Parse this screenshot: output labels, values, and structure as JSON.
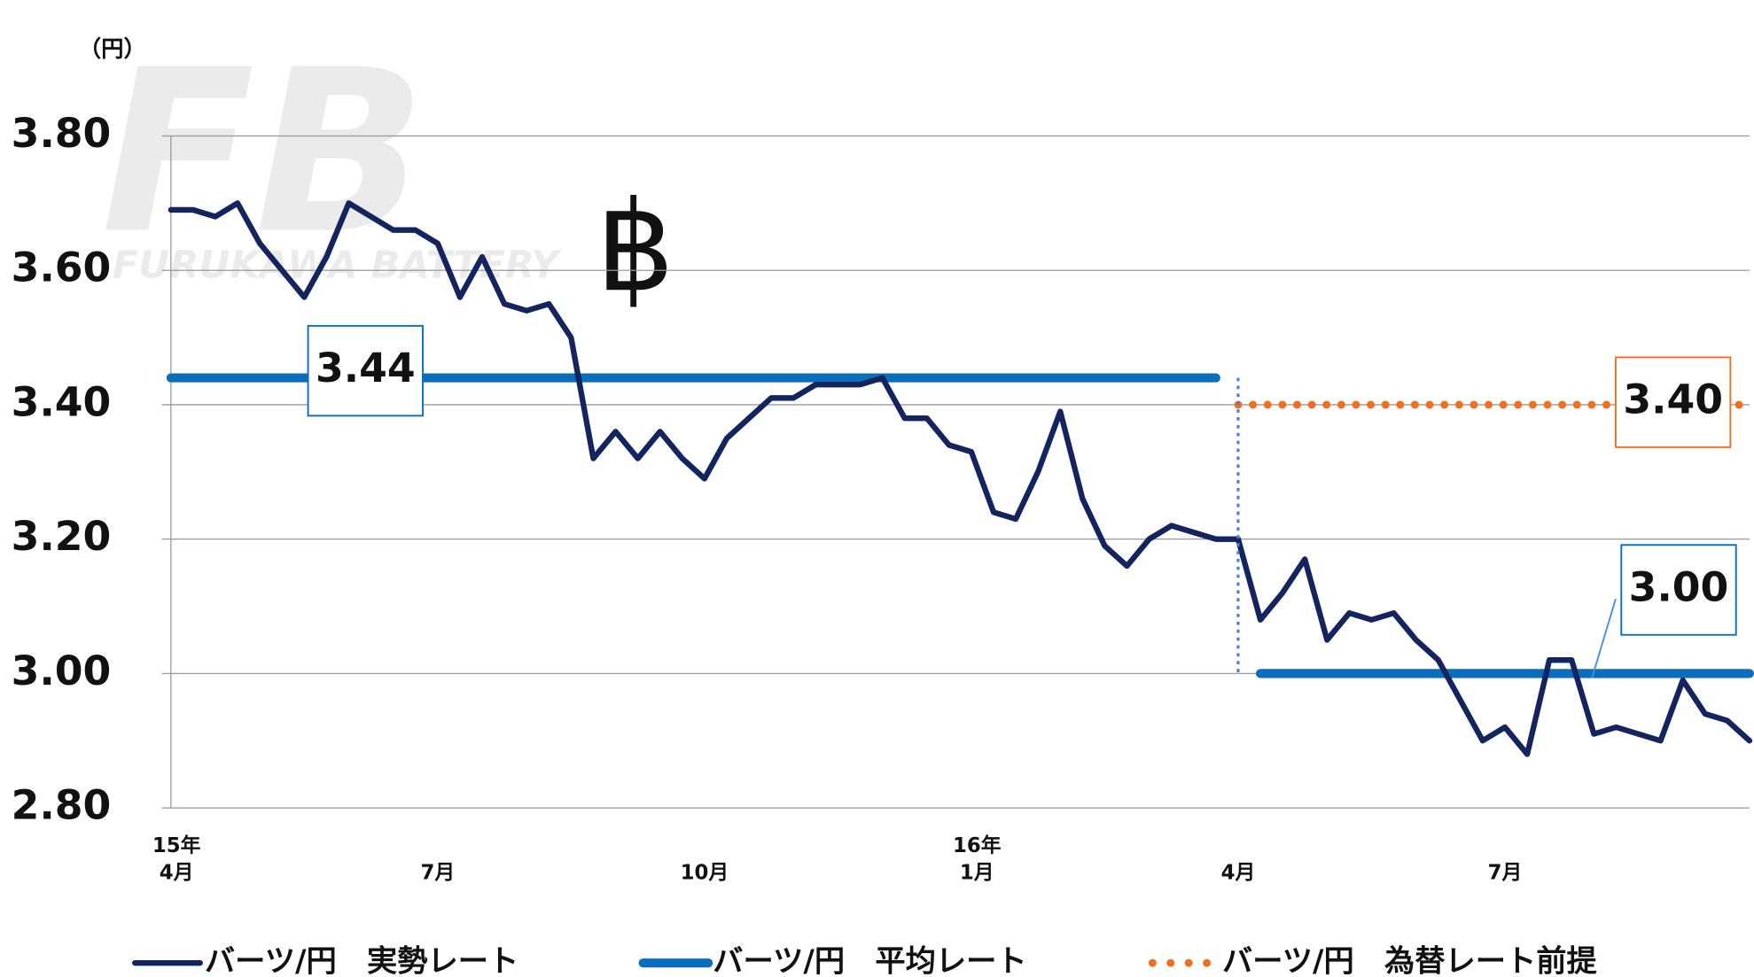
{
  "chart_data": {
    "type": "line",
    "watermark": "FB",
    "watermark_subtitle": "FURUKAWA BATTERY",
    "y_axis_label": "（円）",
    "symbol": "฿",
    "categories": [
      "15年\n4月",
      null,
      null,
      null,
      null,
      null,
      null,
      null,
      null,
      null,
      null,
      null,
      "7月",
      null,
      null,
      null,
      null,
      null,
      null,
      null,
      null,
      null,
      null,
      null,
      "10月",
      null,
      null,
      null,
      null,
      null,
      null,
      null,
      null,
      null,
      null,
      null,
      "16年\n1月",
      null,
      null,
      null,
      null,
      null,
      null,
      null,
      null,
      null,
      null,
      null,
      "4月",
      null,
      null,
      null,
      null,
      null,
      null,
      null,
      null,
      null,
      null,
      null,
      "7月",
      null,
      null,
      null,
      null,
      null,
      null,
      null,
      null,
      null,
      null,
      null
    ],
    "series": [
      {
        "name": "バーツ/円　実勢レート",
        "color": "#13245e",
        "style": "solid",
        "values": [
          3.69,
          3.69,
          3.68,
          3.7,
          3.64,
          3.6,
          3.56,
          3.62,
          3.7,
          3.68,
          3.66,
          3.66,
          3.64,
          3.56,
          3.62,
          3.55,
          3.54,
          3.55,
          3.5,
          3.32,
          3.36,
          3.32,
          3.36,
          3.32,
          3.29,
          3.35,
          3.38,
          3.41,
          3.41,
          3.43,
          3.43,
          3.43,
          3.44,
          3.38,
          3.38,
          3.34,
          3.33,
          3.24,
          3.23,
          3.3,
          3.39,
          3.26,
          3.19,
          3.16,
          3.2,
          3.22,
          3.21,
          3.2,
          3.2,
          3.08,
          3.12,
          3.17,
          3.05,
          3.09,
          3.08,
          3.09,
          3.05,
          3.02,
          2.96,
          2.9,
          2.92,
          2.88,
          3.02,
          3.02,
          2.91,
          2.92,
          2.91,
          2.9,
          2.99,
          2.94,
          2.93,
          2.9
        ]
      },
      {
        "name": "バーツ/円　平均レート",
        "color": "#0a6ebd",
        "style": "solid",
        "values": [
          3.44,
          3.44,
          3.44,
          3.44,
          3.44,
          3.44,
          3.44,
          3.44,
          3.44,
          3.44,
          3.44,
          3.44,
          3.44,
          3.44,
          3.44,
          3.44,
          3.44,
          3.44,
          3.44,
          3.44,
          3.44,
          3.44,
          3.44,
          3.44,
          3.44,
          3.44,
          3.44,
          3.44,
          3.44,
          3.44,
          3.44,
          3.44,
          3.44,
          3.44,
          3.44,
          3.44,
          3.44,
          3.44,
          3.44,
          3.44,
          3.44,
          3.44,
          3.44,
          3.44,
          3.44,
          3.44,
          3.44,
          3.44,
          null,
          3.0,
          3.0,
          3.0,
          3.0,
          3.0,
          3.0,
          3.0,
          3.0,
          3.0,
          3.0,
          3.0,
          3.0,
          3.0,
          3.0,
          3.0,
          3.0,
          3.0,
          3.0,
          3.0,
          3.0,
          3.0,
          3.0,
          3.0
        ]
      },
      {
        "name": "バーツ/円　為替レート前提",
        "color": "#f07020",
        "style": "dotted",
        "values": [
          null,
          null,
          null,
          null,
          null,
          null,
          null,
          null,
          null,
          null,
          null,
          null,
          null,
          null,
          null,
          null,
          null,
          null,
          null,
          null,
          null,
          null,
          null,
          null,
          null,
          null,
          null,
          null,
          null,
          null,
          null,
          null,
          null,
          null,
          null,
          null,
          null,
          null,
          null,
          null,
          null,
          null,
          null,
          null,
          null,
          null,
          null,
          null,
          3.4,
          3.4,
          3.4,
          3.4,
          3.4,
          3.4,
          3.4,
          3.4,
          3.4,
          3.4,
          3.4,
          3.4,
          3.4,
          3.4,
          3.4,
          3.4,
          3.4,
          3.4,
          3.4,
          3.4,
          3.4,
          3.4,
          3.4,
          3.4
        ]
      }
    ],
    "annotations": [
      "3.44",
      "3.40",
      "3.00"
    ],
    "ylim": [
      2.8,
      3.8
    ],
    "yticks": [
      {
        "value": 2.8,
        "label": "2.80"
      },
      {
        "value": 3.0,
        "label": "3.00"
      },
      {
        "value": 3.2,
        "label": "3.20"
      },
      {
        "value": 3.4,
        "label": "3.40"
      },
      {
        "value": 3.6,
        "label": "3.60"
      },
      {
        "value": 3.8,
        "label": "3.80"
      }
    ],
    "grid": true
  }
}
